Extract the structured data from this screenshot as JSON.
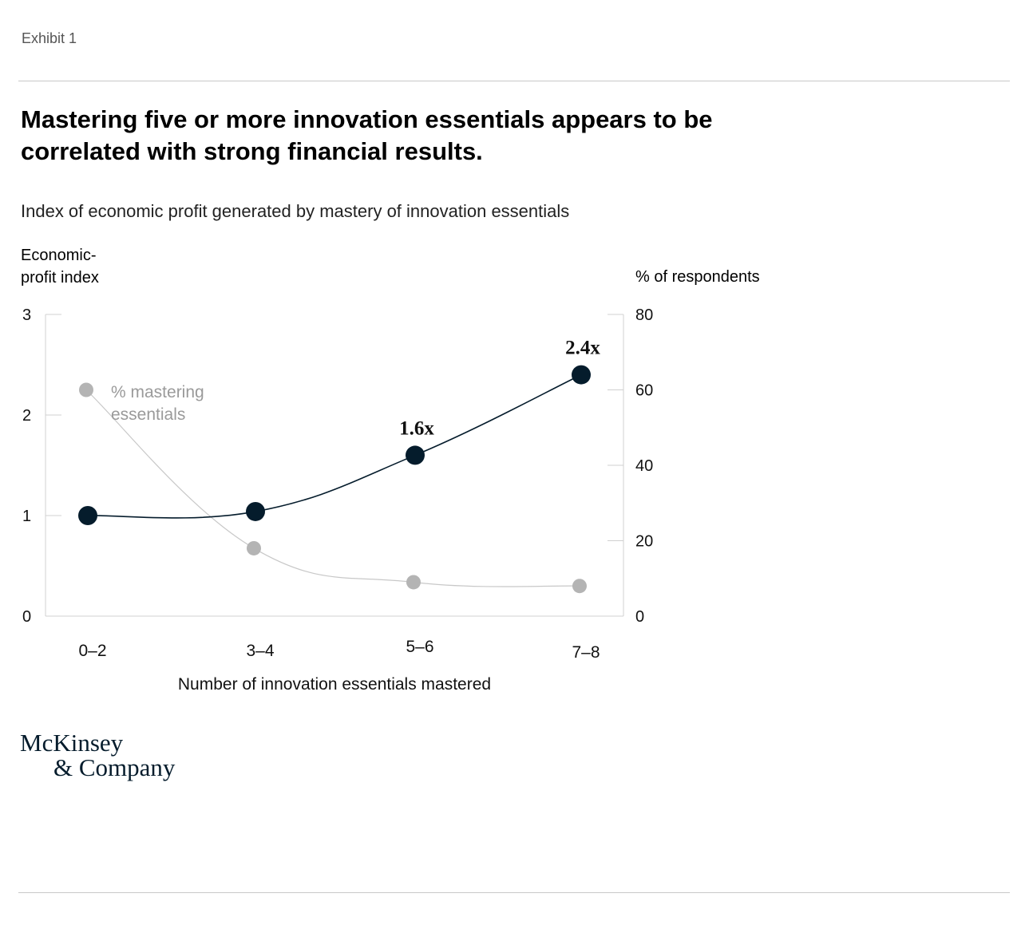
{
  "header": {
    "exhibit": "Exhibit 1"
  },
  "title": "Mastering five or more innovation essentials appears to be correlated with strong financial results.",
  "subtitle": "Index of economic profit generated by mastery of innovation essentials",
  "colors": {
    "dark_series": "#051c2c",
    "gray_series": "#b4b4b4",
    "axis": "#d0d0d0"
  },
  "chart_data": {
    "type": "line",
    "categories": [
      "0–2",
      "3–4",
      "5–6",
      "7–8"
    ],
    "xlabel": "Number of innovation essentials mastered",
    "y_left": {
      "label": "Economic-profit index",
      "label_lines": [
        "Economic-",
        "profit index"
      ],
      "ticks": [
        "0",
        "1",
        "2",
        "3"
      ],
      "lim": [
        0,
        3
      ]
    },
    "y_right": {
      "label": "% of respondents",
      "ticks": [
        "0",
        "20",
        "40",
        "60",
        "80"
      ],
      "lim": [
        0,
        80
      ]
    },
    "series": [
      {
        "axis": "left",
        "values": [
          1.0,
          1.04,
          1.6,
          2.4
        ],
        "color": "#051c2c",
        "point_labels": [
          "",
          "",
          "1.6x",
          "2.4x"
        ]
      },
      {
        "name": "% mastering essentials",
        "axis": "right",
        "values": [
          60,
          18,
          9,
          8
        ],
        "color": "#b4b4b4"
      }
    ],
    "grid": false,
    "legend": "inline annotation near first gray point"
  },
  "series_label_lines": [
    "% mastering",
    "essentials"
  ],
  "logo": {
    "line1": "McKinsey",
    "line2": "& Company"
  }
}
